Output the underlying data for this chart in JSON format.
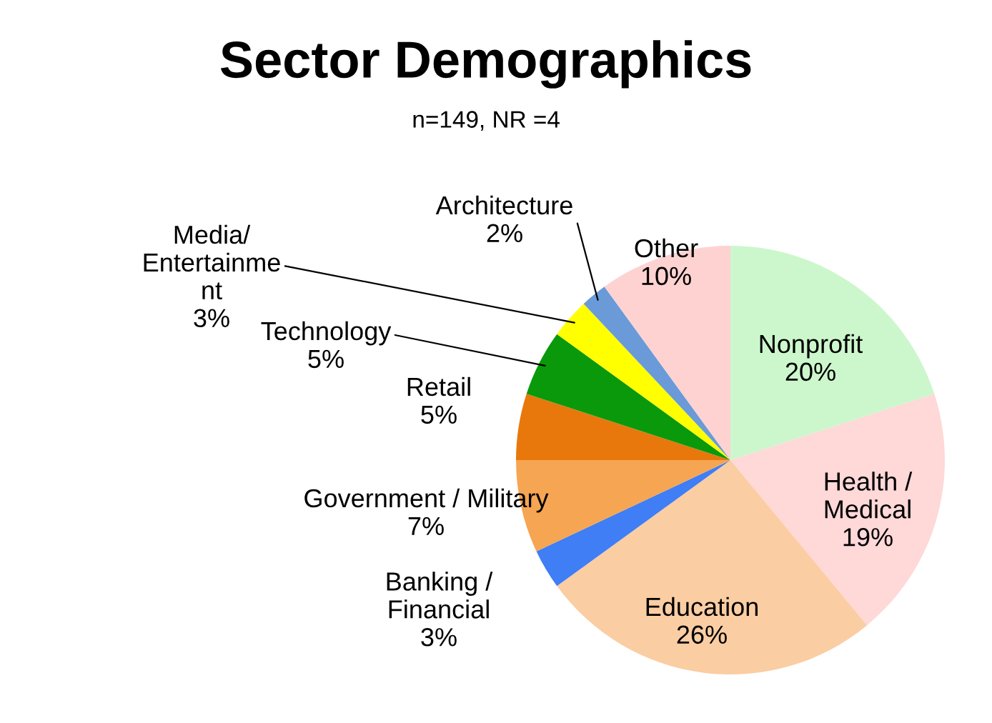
{
  "chart_data": {
    "type": "pie",
    "title": "Sector Demographics",
    "subtitle": "n=149, NR =4",
    "categories": [
      "Nonprofit",
      "Health /\nMedical",
      "Education",
      "Banking /\nFinancial",
      "Government / Military",
      "Retail",
      "Technology",
      "Media/\nEntertainme\nnt",
      "Architecture",
      "Other"
    ],
    "values": [
      20,
      19,
      26,
      3,
      7,
      5,
      5,
      3,
      2,
      10
    ],
    "value_labels": [
      "20%",
      "19%",
      "26%",
      "3%",
      "7%",
      "5%",
      "5%",
      "3%",
      "2%",
      "10%"
    ],
    "colors": [
      "#ccf7cc",
      "#ffd8d8",
      "#fbcda3",
      "#3f7ef5",
      "#f6a552",
      "#e8780c",
      "#0a990a",
      "#ffff00",
      "#6a9ad8",
      "#ffd2d2"
    ],
    "legend": false
  }
}
